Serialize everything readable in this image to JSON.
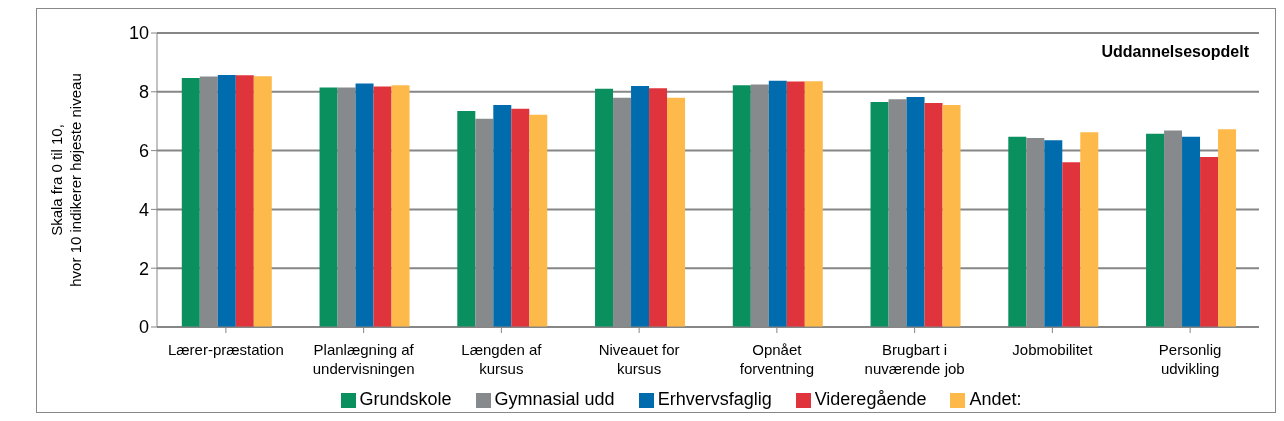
{
  "chart_data": {
    "type": "bar",
    "title": "Uddannelsesopdelt",
    "ylabel": "Skala fra 0  til 10,\nhvor 10 indikerer højeste niveau",
    "categories": [
      "Lærer-præstation",
      "Planlægning af undervisningen",
      "Længden af kursus",
      "Niveauet for kursus",
      "Opnået forventning",
      "Brugbart i nuværende job",
      "Jobmobilitet",
      "Personlig udvikling"
    ],
    "series": [
      {
        "name": "Grundskole",
        "color": "#0a8f5f",
        "values": [
          8.47,
          8.15,
          7.35,
          8.1,
          8.22,
          7.65,
          6.47,
          6.57
        ]
      },
      {
        "name": "Gymnasial udd",
        "color": "#878a8c",
        "values": [
          8.52,
          8.15,
          7.08,
          7.8,
          8.25,
          7.75,
          6.43,
          6.68
        ]
      },
      {
        "name": "Erhvervsfaglig",
        "color": "#006cae",
        "values": [
          8.57,
          8.28,
          7.55,
          8.2,
          8.38,
          7.82,
          6.35,
          6.47
        ]
      },
      {
        "name": "Videregående",
        "color": "#e0343d",
        "values": [
          8.56,
          8.18,
          7.42,
          8.12,
          8.35,
          7.62,
          5.6,
          5.78
        ]
      },
      {
        "name": "Andet:",
        "color": "#fdba4b",
        "values": [
          8.53,
          8.22,
          7.22,
          7.8,
          8.36,
          7.55,
          6.62,
          6.73
        ]
      }
    ],
    "ylim": [
      0,
      10
    ],
    "yticks": [
      0,
      2,
      4,
      6,
      8,
      10
    ],
    "grid": "y",
    "legend": "bottom"
  }
}
